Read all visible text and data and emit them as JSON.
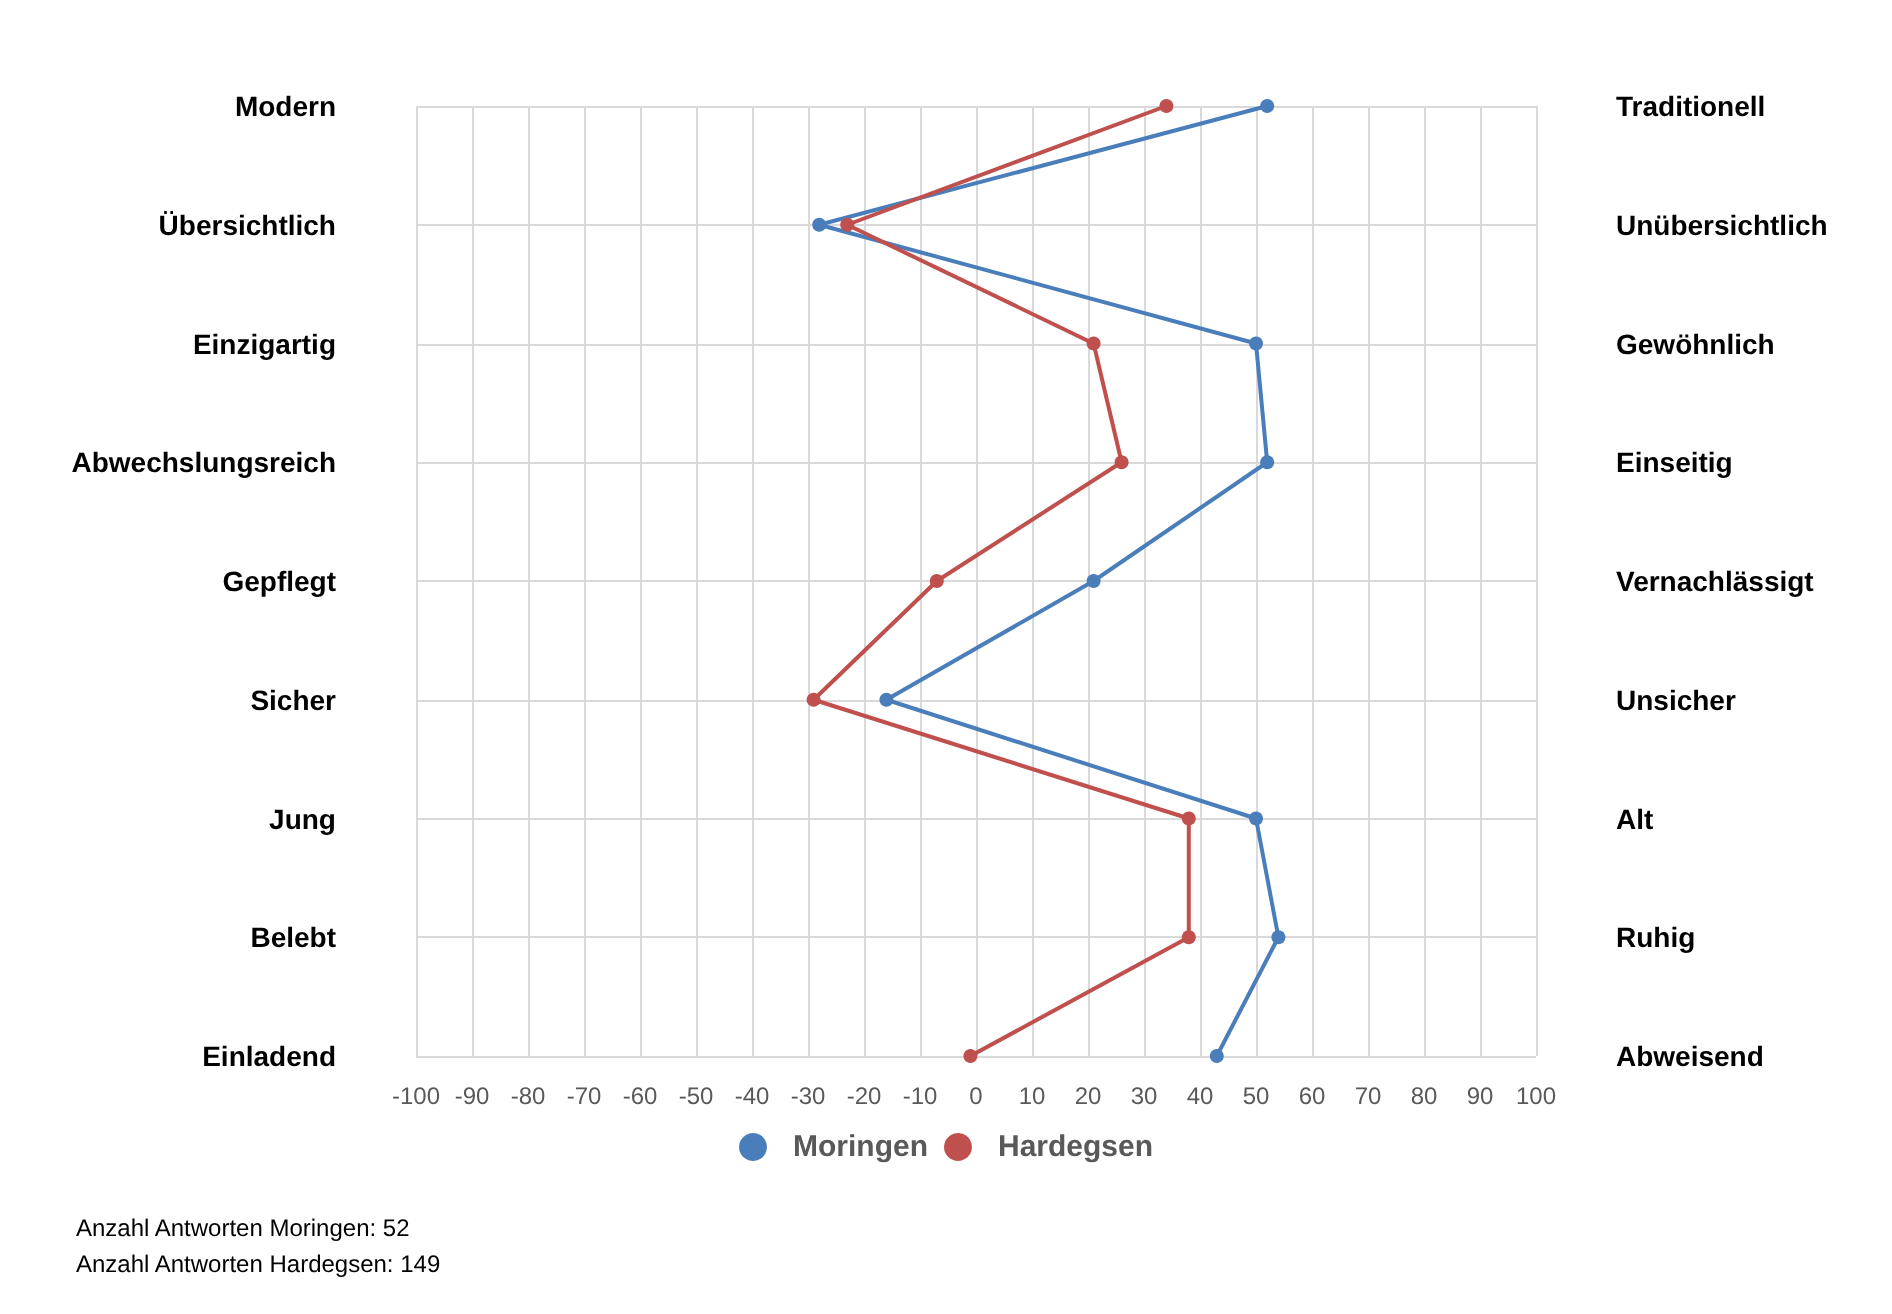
{
  "chart_data": {
    "type": "line",
    "orientation": "horizontal",
    "categories": [
      "Modern",
      "Übersichtlich",
      "Einzigartig",
      "Abwechslungsreich",
      "Gepflegt",
      "Sicher",
      "Jung",
      "Belebt",
      "Einladend"
    ],
    "y2_categories": [
      "Traditionell",
      "Unübersichtlich",
      "Gewöhnlich",
      "Einseitig",
      "Vernachlässigt",
      "Unsicher",
      "Alt",
      "Ruhig",
      "Abweisend"
    ],
    "series": [
      {
        "name": "Moringen",
        "color": "#4a7ebb",
        "values": [
          52,
          -28,
          50,
          52,
          21,
          -16,
          50,
          54,
          43
        ]
      },
      {
        "name": "Hardegsen",
        "color": "#c0504d",
        "values": [
          34,
          -23,
          21,
          26,
          -7,
          -29,
          38,
          38,
          -1
        ]
      }
    ],
    "xlim": [
      -100,
      100
    ],
    "xticks": [
      -100,
      -90,
      -80,
      -70,
      -60,
      -50,
      -40,
      -30,
      -20,
      -10,
      0,
      10,
      20,
      30,
      40,
      50,
      60,
      70,
      80,
      90,
      100
    ],
    "grid": true,
    "legend": "bottom",
    "marker": "circle",
    "line_style": "solid",
    "annotations": [
      "Anzahl Antworten Moringen: 52",
      "Anzahl Antworten Hardegsen: 149"
    ]
  }
}
